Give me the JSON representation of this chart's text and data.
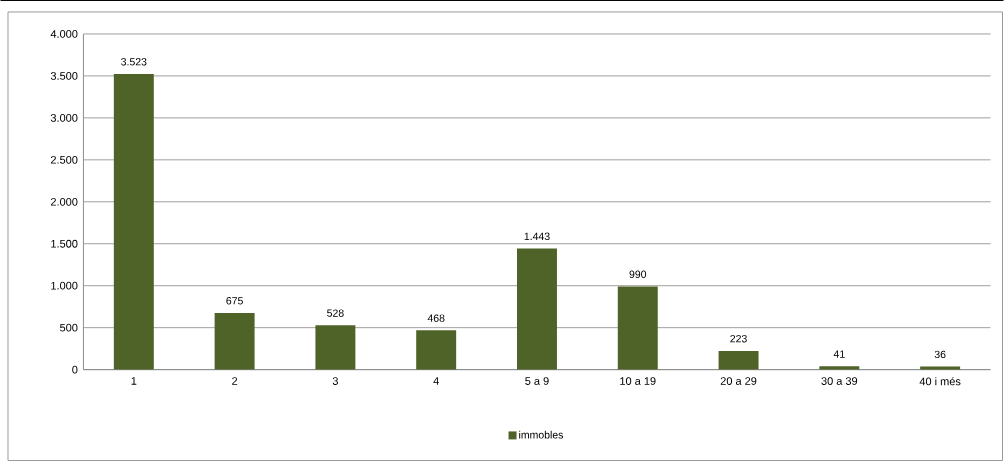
{
  "chart_data": {
    "type": "bar",
    "categories": [
      "1",
      "2",
      "3",
      "4",
      "5 a 9",
      "10 a 19",
      "20 a 29",
      "30 a 39",
      "40 i més"
    ],
    "series": [
      {
        "name": "immobles",
        "color": "#4f6228",
        "values": [
          3523,
          675,
          528,
          468,
          1443,
          990,
          223,
          41,
          36
        ],
        "value_labels": [
          "3.523",
          "675",
          "528",
          "468",
          "1.443",
          "990",
          "223",
          "41",
          "36"
        ]
      }
    ],
    "ylim": [
      0,
      4000
    ],
    "yticks": [
      0,
      500,
      {
        "value": 1000,
        "label": "1.000"
      },
      {
        "value": 1500,
        "label": "1.500"
      },
      {
        "value": 2000,
        "label": "2.000"
      },
      {
        "value": 2500,
        "label": "2.500"
      },
      {
        "value": 3000,
        "label": "3.000"
      },
      {
        "value": 3500,
        "label": "3.500"
      },
      {
        "value": 4000,
        "label": "4.000"
      }
    ],
    "grid": "y",
    "legend": "bottom"
  }
}
